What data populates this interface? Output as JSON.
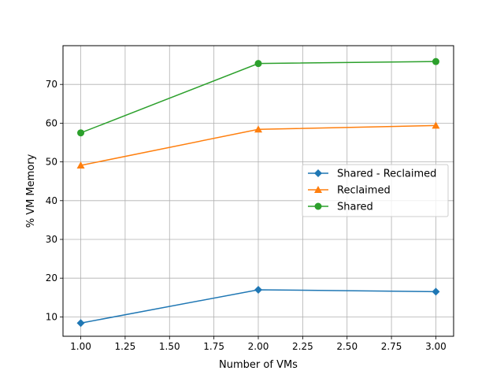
{
  "chart_data": {
    "type": "line",
    "title": "",
    "xlabel": "Number of VMs",
    "ylabel": "% VM Memory",
    "xlim": [
      0.9,
      3.1
    ],
    "ylim": [
      5,
      80
    ],
    "xticks": [
      1.0,
      1.25,
      1.5,
      1.75,
      2.0,
      2.25,
      2.5,
      2.75,
      3.0
    ],
    "xtick_labels": [
      "1.00",
      "1.25",
      "1.50",
      "1.75",
      "2.00",
      "2.25",
      "2.50",
      "2.75",
      "3.00"
    ],
    "yticks": [
      10,
      20,
      30,
      40,
      50,
      60,
      70
    ],
    "ytick_labels": [
      "10",
      "20",
      "30",
      "40",
      "50",
      "60",
      "70"
    ],
    "grid": true,
    "legend_position": "center-right",
    "x": [
      1,
      2,
      3
    ],
    "series": [
      {
        "name": "Shared - Reclaimed",
        "values": [
          8.4,
          17.0,
          16.5
        ],
        "color": "#1f77b4",
        "marker": "diamond"
      },
      {
        "name": "Reclaimed",
        "values": [
          49.1,
          58.4,
          59.4
        ],
        "color": "#ff7f0e",
        "marker": "triangle"
      },
      {
        "name": "Shared",
        "values": [
          57.5,
          75.4,
          75.9
        ],
        "color": "#2ca02c",
        "marker": "circle"
      }
    ]
  }
}
